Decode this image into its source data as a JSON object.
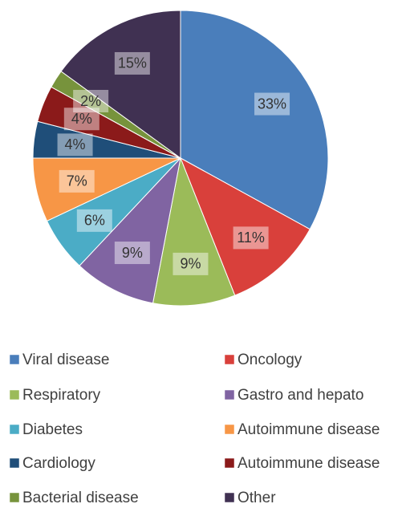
{
  "chart_data": {
    "type": "pie",
    "categories": [
      "Viral disease",
      "Oncology",
      "Respiratory",
      "Gastro and hepato",
      "Diabetes",
      "Autoimmune disease",
      "Cardiology",
      "Autoimmune disease",
      "Bacterial disease",
      "Other"
    ],
    "values": [
      33,
      11,
      9,
      9,
      6,
      7,
      4,
      4,
      2,
      15
    ],
    "value_labels": [
      "33%",
      "11%",
      "9%",
      "9%",
      "6%",
      "7%",
      "4%",
      "4%",
      "2%",
      "15%"
    ],
    "colors": [
      "#4a7ebb",
      "#d9403b",
      "#9bbb59",
      "#8064a2",
      "#4bacc6",
      "#f79646",
      "#1f4e79",
      "#8b1a1a",
      "#77933c",
      "#403152"
    ]
  }
}
